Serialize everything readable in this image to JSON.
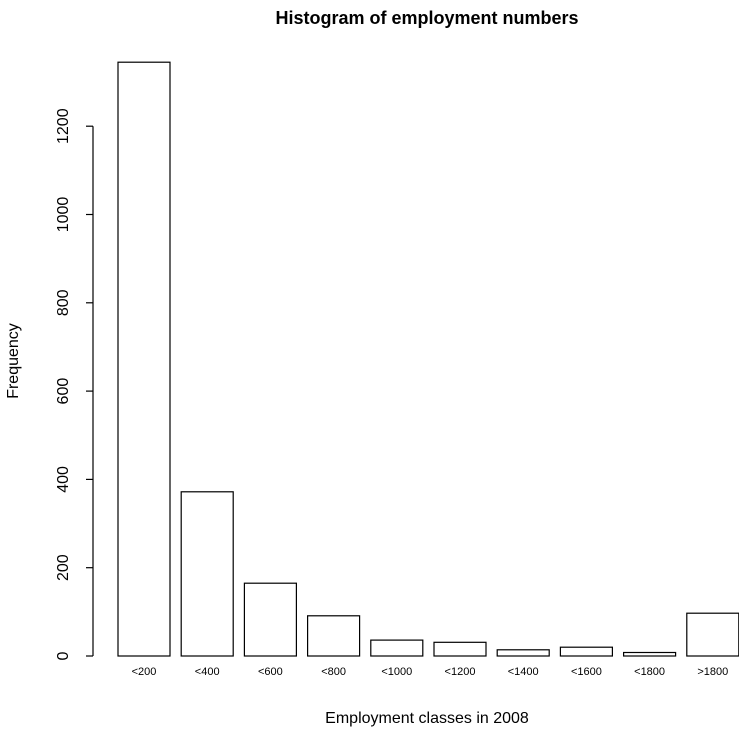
{
  "chart_data": {
    "type": "bar",
    "title": "Histogram of employment numbers",
    "xlabel": "Employment classes in 2008",
    "ylabel": "Frequency",
    "categories": [
      "<200",
      "<400",
      "<600",
      "<800",
      "<1000",
      "<1200",
      "<1400",
      "<1600",
      "<1800",
      ">1800"
    ],
    "values": [
      1345,
      372,
      165,
      91,
      36,
      31,
      14,
      20,
      8,
      97
    ],
    "yticks": [
      0,
      200,
      400,
      600,
      800,
      1000,
      1200
    ],
    "ylim": [
      0,
      1345
    ],
    "grid": false,
    "legend": "none",
    "bar_fill": "#ffffff",
    "bar_stroke": "#000000"
  }
}
